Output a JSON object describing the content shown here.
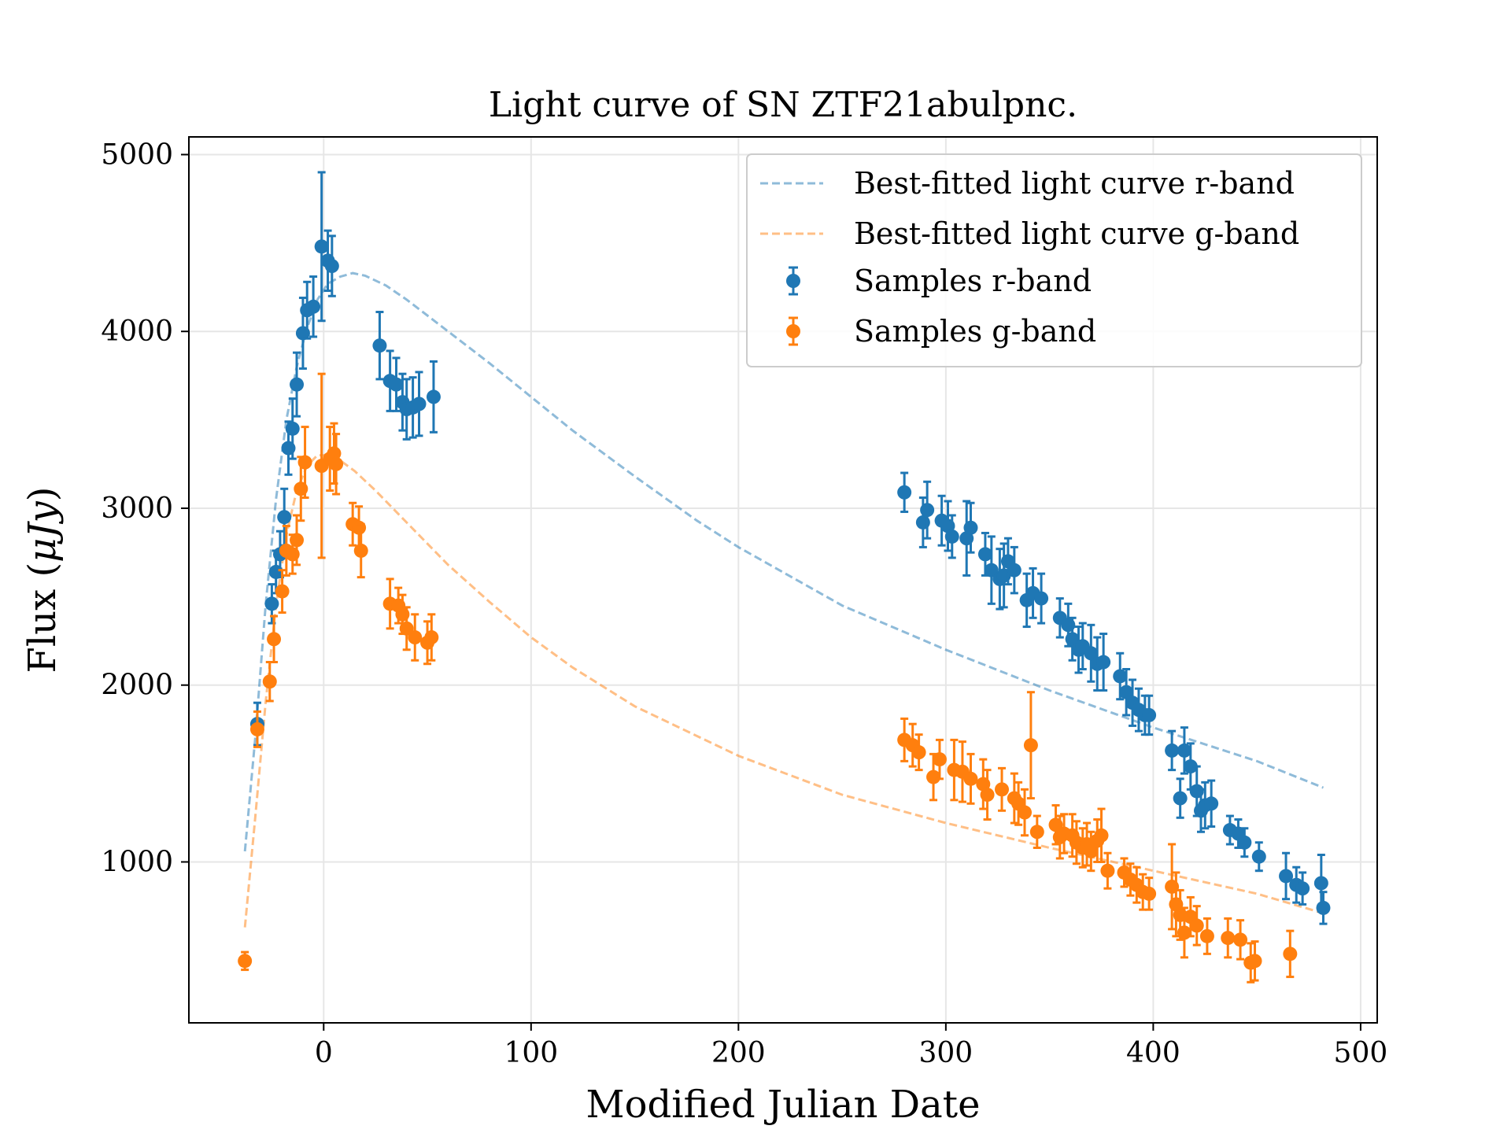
{
  "chart_data": {
    "type": "scatter",
    "title": "Light curve of SN ZTF21abulpnc.",
    "xlabel": "Modified Julian Date",
    "ylabel": "Flux (",
    "ylabel_unit": "μJy",
    "ylabel_close": ")",
    "xlim": [
      -65,
      508
    ],
    "ylim": [
      90,
      5100
    ],
    "xticks": [
      0,
      100,
      200,
      300,
      400,
      500
    ],
    "yticks": [
      1000,
      2000,
      3000,
      4000,
      5000
    ],
    "grid": true,
    "legend_position": "top-right",
    "colors": {
      "r": "#1f77b4",
      "g": "#ff7f0e"
    },
    "series": [
      {
        "name": "Best-fitted light curve r-band",
        "style": "dashed",
        "color": "#1f77b4",
        "points": [
          [
            -38,
            1060
          ],
          [
            -33,
            1700
          ],
          [
            -28,
            2450
          ],
          [
            -23,
            3050
          ],
          [
            -18,
            3500
          ],
          [
            -13,
            3800
          ],
          [
            -8,
            4020
          ],
          [
            -3,
            4180
          ],
          [
            2,
            4270
          ],
          [
            8,
            4310
          ],
          [
            14,
            4330
          ],
          [
            20,
            4315
          ],
          [
            30,
            4260
          ],
          [
            40,
            4180
          ],
          [
            50,
            4090
          ],
          [
            60,
            4000
          ],
          [
            80,
            3820
          ],
          [
            100,
            3630
          ],
          [
            120,
            3440
          ],
          [
            150,
            3180
          ],
          [
            180,
            2930
          ],
          [
            200,
            2780
          ],
          [
            250,
            2450
          ],
          [
            300,
            2200
          ],
          [
            350,
            1970
          ],
          [
            400,
            1760
          ],
          [
            450,
            1570
          ],
          [
            482,
            1420
          ]
        ]
      },
      {
        "name": "Best-fitted light curve g-band",
        "style": "dashed",
        "color": "#ff7f0e",
        "points": [
          [
            -38,
            630
          ],
          [
            -33,
            1250
          ],
          [
            -28,
            1900
          ],
          [
            -23,
            2450
          ],
          [
            -18,
            2850
          ],
          [
            -13,
            3100
          ],
          [
            -8,
            3240
          ],
          [
            -3,
            3300
          ],
          [
            2,
            3300
          ],
          [
            8,
            3270
          ],
          [
            15,
            3210
          ],
          [
            25,
            3100
          ],
          [
            40,
            2920
          ],
          [
            60,
            2680
          ],
          [
            80,
            2470
          ],
          [
            100,
            2270
          ],
          [
            120,
            2100
          ],
          [
            150,
            1880
          ],
          [
            200,
            1600
          ],
          [
            250,
            1380
          ],
          [
            300,
            1220
          ],
          [
            350,
            1080
          ],
          [
            400,
            950
          ],
          [
            450,
            820
          ],
          [
            482,
            710
          ]
        ]
      },
      {
        "name": "Samples r-band",
        "style": "errorbar",
        "color": "#1f77b4",
        "points": [
          [
            -32,
            1780,
            120
          ],
          [
            -25,
            2460,
            110
          ],
          [
            -23,
            2640,
            120
          ],
          [
            -21,
            2740,
            130
          ],
          [
            -19,
            2950,
            160
          ],
          [
            -17,
            3340,
            150
          ],
          [
            -15,
            3450,
            170
          ],
          [
            -13,
            3700,
            180
          ],
          [
            -10,
            3990,
            200
          ],
          [
            -8,
            4120,
            160
          ],
          [
            -5,
            4140,
            170
          ],
          [
            -1,
            4480,
            420
          ],
          [
            2,
            4400,
            170
          ],
          [
            4,
            4370,
            170
          ],
          [
            27,
            3920,
            190
          ],
          [
            32,
            3720,
            170
          ],
          [
            35,
            3700,
            150
          ],
          [
            38,
            3600,
            160
          ],
          [
            40,
            3560,
            170
          ],
          [
            43,
            3570,
            170
          ],
          [
            46,
            3590,
            180
          ],
          [
            53,
            3630,
            200
          ],
          [
            280,
            3090,
            110
          ],
          [
            289,
            2920,
            140
          ],
          [
            291,
            2990,
            160
          ],
          [
            298,
            2930,
            140
          ],
          [
            301,
            2900,
            140
          ],
          [
            303,
            2840,
            120
          ],
          [
            310,
            2830,
            210
          ],
          [
            312,
            2890,
            140
          ],
          [
            319,
            2740,
            120
          ],
          [
            322,
            2650,
            190
          ],
          [
            326,
            2600,
            170
          ],
          [
            328,
            2620,
            180
          ],
          [
            330,
            2700,
            130
          ],
          [
            333,
            2650,
            130
          ],
          [
            339,
            2480,
            150
          ],
          [
            342,
            2520,
            140
          ],
          [
            346,
            2490,
            140
          ],
          [
            355,
            2380,
            110
          ],
          [
            359,
            2340,
            120
          ],
          [
            361,
            2260,
            120
          ],
          [
            364,
            2200,
            130
          ],
          [
            366,
            2220,
            130
          ],
          [
            370,
            2180,
            160
          ],
          [
            373,
            2120,
            150
          ],
          [
            376,
            2130,
            160
          ],
          [
            384,
            2050,
            130
          ],
          [
            387,
            1960,
            130
          ],
          [
            390,
            1900,
            130
          ],
          [
            393,
            1860,
            120
          ],
          [
            396,
            1830,
            110
          ],
          [
            398,
            1830,
            110
          ],
          [
            409,
            1630,
            110
          ],
          [
            413,
            1360,
            110
          ],
          [
            415,
            1630,
            130
          ],
          [
            418,
            1540,
            130
          ],
          [
            421,
            1400,
            140
          ],
          [
            423,
            1290,
            120
          ],
          [
            425,
            1320,
            130
          ],
          [
            428,
            1330,
            130
          ],
          [
            437,
            1180,
            80
          ],
          [
            441,
            1160,
            80
          ],
          [
            444,
            1110,
            80
          ],
          [
            451,
            1030,
            80
          ],
          [
            464,
            920,
            130
          ],
          [
            469,
            870,
            100
          ],
          [
            472,
            850,
            90
          ],
          [
            481,
            880,
            160
          ],
          [
            482,
            740,
            90
          ]
        ]
      },
      {
        "name": "Samples g-band",
        "style": "errorbar",
        "color": "#ff7f0e",
        "points": [
          [
            -38,
            440,
            50
          ],
          [
            -32,
            1750,
            100
          ],
          [
            -26,
            2020,
            110
          ],
          [
            -24,
            2260,
            130
          ],
          [
            -20,
            2530,
            120
          ],
          [
            -18,
            2760,
            140
          ],
          [
            -15,
            2740,
            110
          ],
          [
            -13,
            2820,
            140
          ],
          [
            -11,
            3110,
            180
          ],
          [
            -9,
            3260,
            200
          ],
          [
            -1,
            3240,
            520
          ],
          [
            3,
            3280,
            180
          ],
          [
            5,
            3310,
            170
          ],
          [
            6,
            3250,
            170
          ],
          [
            14,
            2910,
            120
          ],
          [
            17,
            2890,
            120
          ],
          [
            18,
            2760,
            150
          ],
          [
            32,
            2460,
            140
          ],
          [
            36,
            2450,
            100
          ],
          [
            38,
            2400,
            110
          ],
          [
            40,
            2320,
            120
          ],
          [
            44,
            2270,
            130
          ],
          [
            50,
            2240,
            120
          ],
          [
            52,
            2270,
            130
          ],
          [
            280,
            1690,
            120
          ],
          [
            284,
            1660,
            120
          ],
          [
            287,
            1620,
            100
          ],
          [
            294,
            1480,
            130
          ],
          [
            297,
            1580,
            110
          ],
          [
            304,
            1520,
            170
          ],
          [
            308,
            1510,
            170
          ],
          [
            312,
            1470,
            140
          ],
          [
            318,
            1440,
            140
          ],
          [
            320,
            1380,
            140
          ],
          [
            327,
            1410,
            120
          ],
          [
            333,
            1360,
            140
          ],
          [
            335,
            1330,
            120
          ],
          [
            338,
            1280,
            130
          ],
          [
            341,
            1660,
            300
          ],
          [
            344,
            1170,
            90
          ],
          [
            353,
            1210,
            110
          ],
          [
            355,
            1140,
            120
          ],
          [
            357,
            1160,
            110
          ],
          [
            361,
            1150,
            120
          ],
          [
            363,
            1110,
            120
          ],
          [
            366,
            1080,
            110
          ],
          [
            368,
            1100,
            120
          ],
          [
            370,
            1060,
            110
          ],
          [
            373,
            1120,
            120
          ],
          [
            375,
            1150,
            150
          ],
          [
            378,
            950,
            100
          ],
          [
            386,
            940,
            80
          ],
          [
            389,
            900,
            90
          ],
          [
            392,
            870,
            100
          ],
          [
            395,
            830,
            100
          ],
          [
            398,
            820,
            90
          ],
          [
            409,
            860,
            240
          ],
          [
            411,
            760,
            180
          ],
          [
            413,
            700,
            140
          ],
          [
            415,
            600,
            140
          ],
          [
            418,
            690,
            110
          ],
          [
            421,
            640,
            110
          ],
          [
            426,
            580,
            100
          ],
          [
            436,
            570,
            110
          ],
          [
            442,
            560,
            110
          ],
          [
            447,
            430,
            110
          ],
          [
            449,
            440,
            110
          ],
          [
            466,
            480,
            130
          ]
        ]
      }
    ]
  }
}
